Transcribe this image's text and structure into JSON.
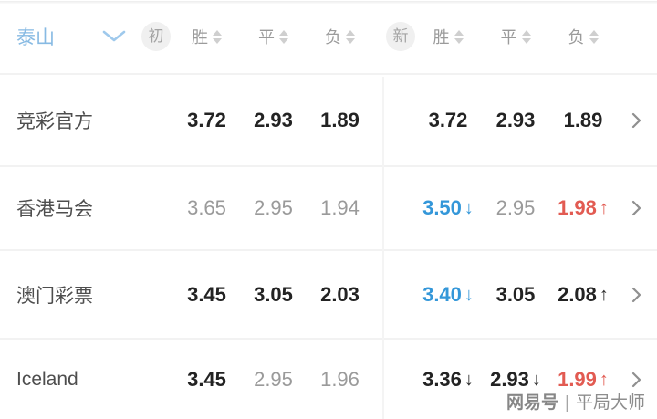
{
  "header": {
    "team_name": "泰山",
    "initial_badge": "初",
    "live_badge": "新",
    "sort_columns": [
      "胜",
      "平",
      "负"
    ]
  },
  "rows": [
    {
      "name": "竞彩官方",
      "initial": [
        {
          "value": "3.72",
          "style": "dark",
          "arrow": ""
        },
        {
          "value": "2.93",
          "style": "dark",
          "arrow": ""
        },
        {
          "value": "1.89",
          "style": "dark",
          "arrow": ""
        }
      ],
      "live": [
        {
          "value": "3.72",
          "style": "dark",
          "arrow": ""
        },
        {
          "value": "2.93",
          "style": "dark",
          "arrow": ""
        },
        {
          "value": "1.89",
          "style": "dark",
          "arrow": ""
        }
      ]
    },
    {
      "name": "香港马会",
      "initial": [
        {
          "value": "3.65",
          "style": "gray",
          "arrow": ""
        },
        {
          "value": "2.95",
          "style": "gray",
          "arrow": ""
        },
        {
          "value": "1.94",
          "style": "gray",
          "arrow": ""
        }
      ],
      "live": [
        {
          "value": "3.50",
          "style": "blue",
          "arrow": "down"
        },
        {
          "value": "2.95",
          "style": "gray",
          "arrow": ""
        },
        {
          "value": "1.98",
          "style": "red",
          "arrow": "up"
        }
      ]
    },
    {
      "name": "澳门彩票",
      "initial": [
        {
          "value": "3.45",
          "style": "dark",
          "arrow": ""
        },
        {
          "value": "3.05",
          "style": "dark",
          "arrow": ""
        },
        {
          "value": "2.03",
          "style": "dark",
          "arrow": ""
        }
      ],
      "live": [
        {
          "value": "3.40",
          "style": "blue",
          "arrow": "down"
        },
        {
          "value": "3.05",
          "style": "dark",
          "arrow": ""
        },
        {
          "value": "2.08",
          "style": "dark",
          "arrow": "up"
        }
      ]
    },
    {
      "name": "Iceland",
      "initial": [
        {
          "value": "3.45",
          "style": "dark",
          "arrow": ""
        },
        {
          "value": "2.95",
          "style": "gray",
          "arrow": ""
        },
        {
          "value": "1.96",
          "style": "gray",
          "arrow": ""
        }
      ],
      "live": [
        {
          "value": "3.36",
          "style": "dark",
          "arrow": "down"
        },
        {
          "value": "2.93",
          "style": "dark",
          "arrow": "down"
        },
        {
          "value": "1.99",
          "style": "red",
          "arrow": "up"
        }
      ]
    }
  ],
  "watermark": {
    "brand": "网易号",
    "separator": "|",
    "author": "平局大师"
  },
  "colors": {
    "team_blue": "#87bae3",
    "odds_dark": "#232323",
    "odds_gray": "#9a9a9a",
    "drop_blue": "#3497d9",
    "rise_red": "#e25b52",
    "divider": "#f2f2f2"
  }
}
